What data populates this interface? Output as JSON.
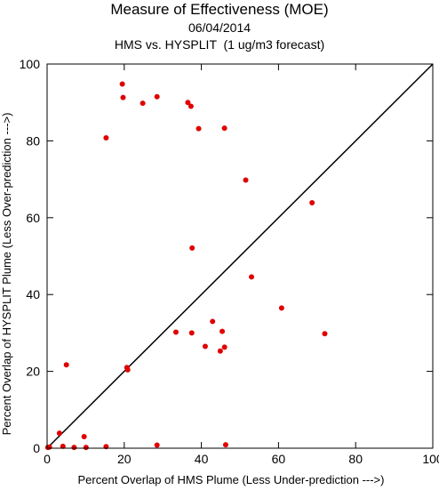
{
  "header": {
    "title": "Measure of Effectiveness (MOE)",
    "date": "06/04/2014",
    "subtitle": "HMS vs. HYSPLIT  (1 ug/m3 forecast)"
  },
  "chart_data": {
    "type": "scatter",
    "xlabel": "Percent Overlap of HMS Plume (Less Under-prediction --->)",
    "ylabel": "Percent Overlap of HYSPLIT Plume (Less Over-prediction --->)",
    "xlim": [
      0,
      100
    ],
    "ylim": [
      0,
      100
    ],
    "xticks": [
      "0",
      "20",
      "40",
      "60",
      "80",
      "100"
    ],
    "yticks": [
      "0",
      "20",
      "40",
      "60",
      "80",
      "100"
    ],
    "grid": false,
    "reference_line": "y = x",
    "marker_color": "#e00000",
    "line_color": "#000000",
    "points": [
      {
        "x": 19.5,
        "y": 94.8
      },
      {
        "x": 19.7,
        "y": 91.3
      },
      {
        "x": 28.5,
        "y": 91.5
      },
      {
        "x": 24.8,
        "y": 89.8
      },
      {
        "x": 36.5,
        "y": 90.0
      },
      {
        "x": 37.3,
        "y": 89.0
      },
      {
        "x": 15.3,
        "y": 80.8
      },
      {
        "x": 39.3,
        "y": 83.2
      },
      {
        "x": 46.0,
        "y": 83.3
      },
      {
        "x": 51.5,
        "y": 69.8
      },
      {
        "x": 68.7,
        "y": 63.9
      },
      {
        "x": 37.6,
        "y": 52.1
      },
      {
        "x": 53.0,
        "y": 44.6
      },
      {
        "x": 60.8,
        "y": 36.5
      },
      {
        "x": 42.9,
        "y": 33.0
      },
      {
        "x": 33.4,
        "y": 30.2
      },
      {
        "x": 37.5,
        "y": 30.0
      },
      {
        "x": 45.4,
        "y": 30.4
      },
      {
        "x": 72.0,
        "y": 29.8
      },
      {
        "x": 41.0,
        "y": 26.5
      },
      {
        "x": 46.0,
        "y": 26.3
      },
      {
        "x": 44.9,
        "y": 25.3
      },
      {
        "x": 5.0,
        "y": 21.7
      },
      {
        "x": 20.7,
        "y": 21.0
      },
      {
        "x": 20.9,
        "y": 20.4
      },
      {
        "x": 3.2,
        "y": 3.9
      },
      {
        "x": 9.6,
        "y": 3.0
      },
      {
        "x": 0.2,
        "y": 0.2
      },
      {
        "x": 0.6,
        "y": 0.3
      },
      {
        "x": 4.1,
        "y": 0.5
      },
      {
        "x": 7.0,
        "y": 0.2
      },
      {
        "x": 10.1,
        "y": 0.2
      },
      {
        "x": 15.3,
        "y": 0.4
      },
      {
        "x": 28.5,
        "y": 0.8
      },
      {
        "x": 46.3,
        "y": 0.9
      }
    ]
  }
}
